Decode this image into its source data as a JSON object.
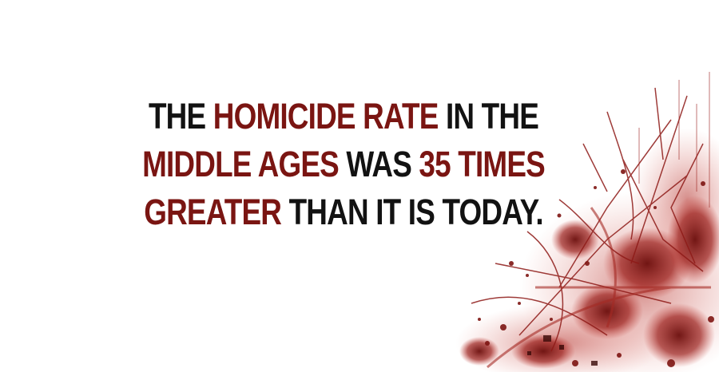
{
  "fact": {
    "segments": [
      {
        "text": "THE ",
        "accent": false
      },
      {
        "text": "HOMICIDE RATE",
        "accent": true
      },
      {
        "text": " IN THE ",
        "accent": false
      },
      {
        "text": "MIDDLE AGES",
        "accent": true
      },
      {
        "text": " WAS ",
        "accent": false
      },
      {
        "text": "35 TIMES GREATER",
        "accent": true
      },
      {
        "text": " THAN IT IS TODAY.",
        "accent": false
      }
    ]
  },
  "colors": {
    "background": "#ffffff",
    "text": "#121212",
    "accent": "#7a1512",
    "splatter": "#8e1a17"
  }
}
